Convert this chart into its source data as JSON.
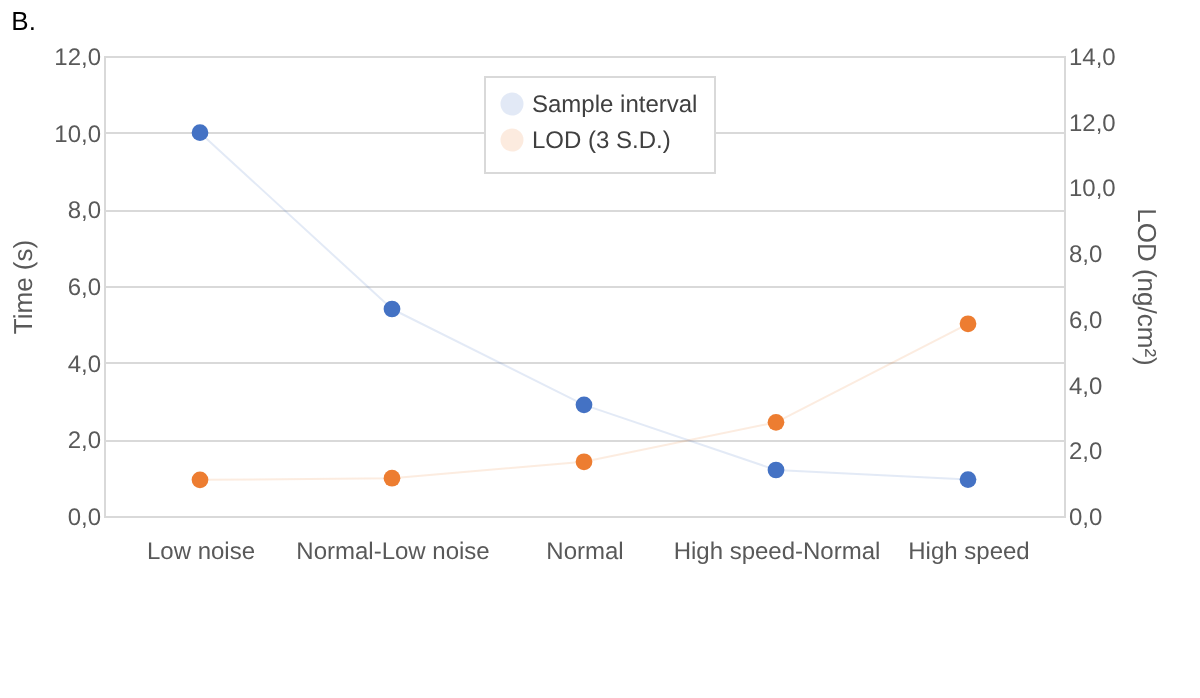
{
  "chart_data": {
    "type": "line",
    "title": "B.",
    "ylabel": "Time (s)",
    "y2label": "LOD (ng/cm²)",
    "categories": [
      "Low noise",
      "Normal-Low noise",
      "Normal",
      "High speed-Normal",
      "High speed"
    ],
    "series": [
      {
        "name": "Sample interval",
        "color": "#4472c4",
        "values": [
          10.0,
          5.4,
          2.9,
          1.2,
          0.95
        ]
      },
      {
        "name": "LOD (3 S.D.)",
        "color": "#ed7d31",
        "axis": "y2",
        "values": [
          1.1,
          1.15,
          1.65,
          2.85,
          5.85
        ]
      }
    ],
    "ylim": [
      0,
      12
    ],
    "yticks": [
      {
        "value": 0,
        "label": "0,0"
      },
      {
        "value": 2,
        "label": "2,0"
      },
      {
        "value": 4,
        "label": "4,0"
      },
      {
        "value": 6,
        "label": "6,0"
      },
      {
        "value": 8,
        "label": "8,0"
      },
      {
        "value": 10,
        "label": "10,0"
      },
      {
        "value": 12,
        "label": "12,0"
      }
    ],
    "y2lim": [
      0,
      14
    ],
    "y2ticks": [
      {
        "value": 0,
        "label": "0,0"
      },
      {
        "value": 2,
        "label": "2,0"
      },
      {
        "value": 4,
        "label": "4,0"
      },
      {
        "value": 6,
        "label": "6,0"
      },
      {
        "value": 8,
        "label": "8,0"
      },
      {
        "value": 10,
        "label": "10,0"
      },
      {
        "value": 12,
        "label": "12,0"
      },
      {
        "value": 14,
        "label": "14,0"
      }
    ],
    "grid": "y",
    "legend": "top",
    "marker": "circle",
    "line_style": "solid"
  }
}
